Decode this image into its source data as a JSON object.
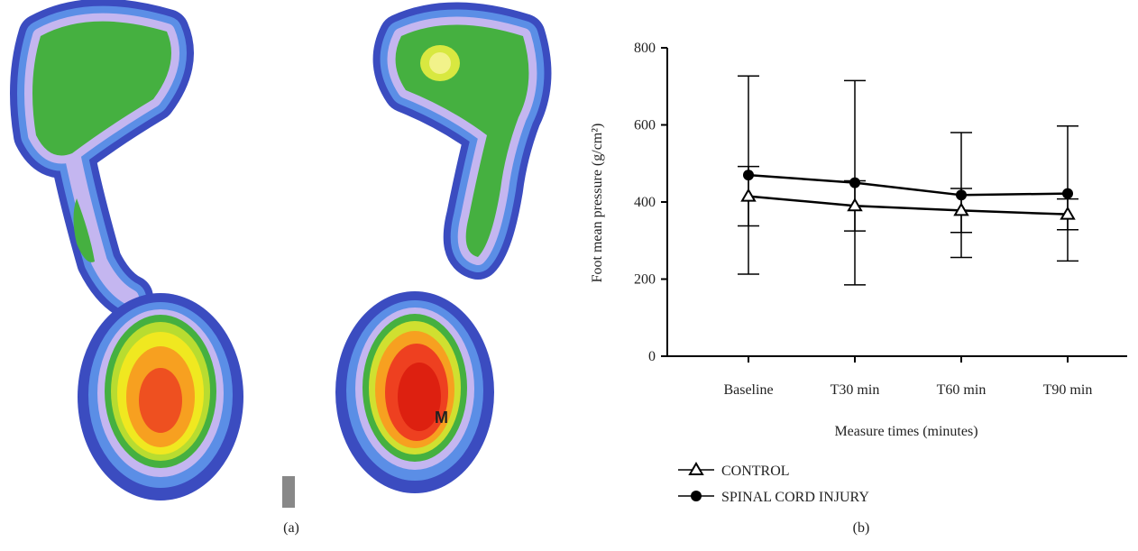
{
  "panels": {
    "a": {
      "label": "(a)",
      "annotation": "M"
    },
    "b": {
      "label": "(b)"
    }
  },
  "chart_data": {
    "type": "line",
    "x_label": "Measure times (minutes)",
    "y_label": "Foot mean pressure (g/cm²)",
    "categories": [
      "Baseline",
      "T30 min",
      "T60 min",
      "T90 min"
    ],
    "ylim": [
      0,
      800
    ],
    "yticks": [
      0,
      200,
      400,
      600,
      800
    ],
    "series": [
      {
        "name": "CONTROL",
        "marker": "open-triangle",
        "color": "#000000",
        "values": [
          415,
          390,
          378,
          368
        ],
        "errors": [
          77,
          65,
          57,
          40
        ]
      },
      {
        "name": "SPINAL CORD INJURY",
        "marker": "filled-circle",
        "color": "#000000",
        "values": [
          470,
          450,
          418,
          422
        ],
        "errors": [
          257,
          265,
          162,
          175
        ]
      }
    ]
  }
}
